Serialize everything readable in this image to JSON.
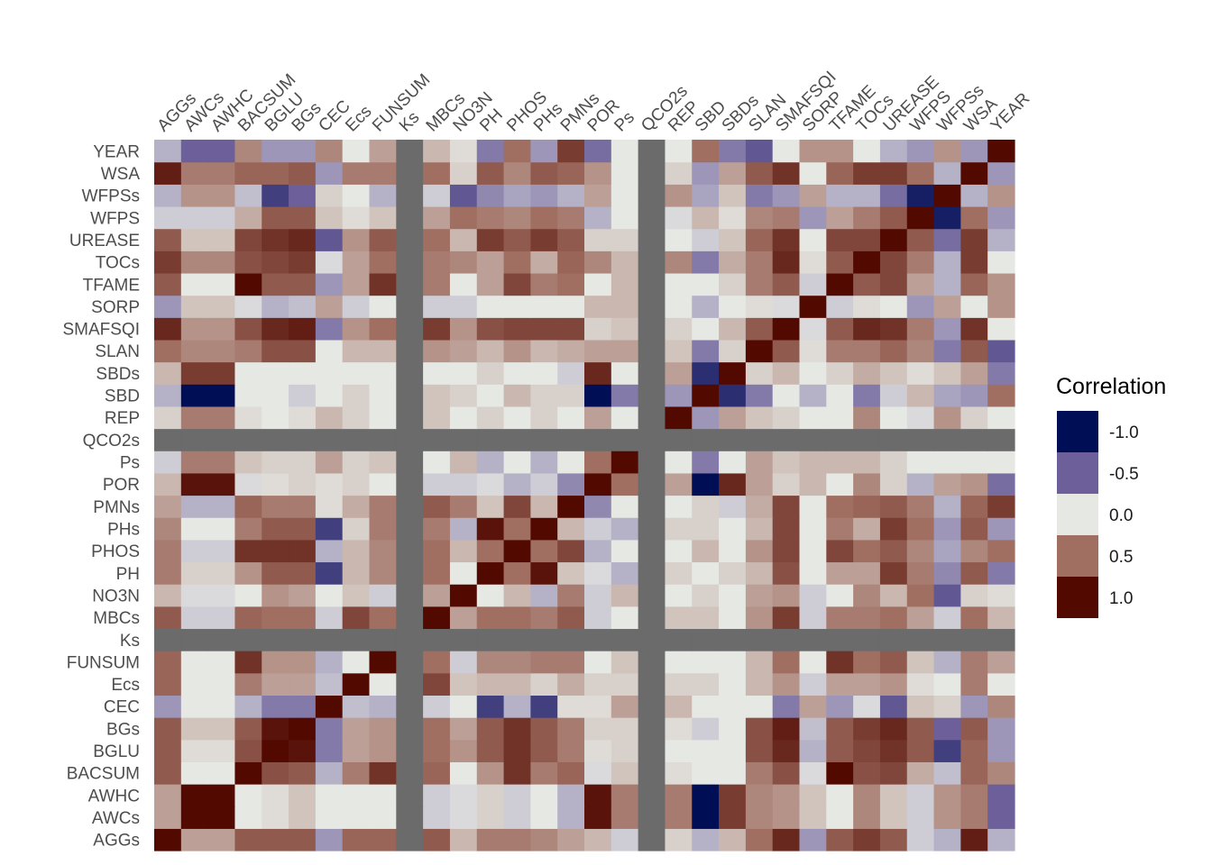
{
  "chart_data": {
    "type": "heatmap",
    "title": "",
    "xlabel": "",
    "ylabel": "",
    "variables": [
      "AGGs",
      "AWCs",
      "AWHC",
      "BACSUM",
      "BGLU",
      "BGs",
      "CEC",
      "Ecs",
      "FUNSUM",
      "Ks",
      "MBCs",
      "NO3N",
      "PH",
      "PHOS",
      "PHs",
      "PMNs",
      "POR",
      "Ps",
      "QCO2s",
      "REP",
      "SBD",
      "SBDs",
      "SLAN",
      "SMAFSQI",
      "SORP",
      "TFAME",
      "TOCs",
      "UREASE",
      "WFPS",
      "WFPSs",
      "WSA",
      "YEAR"
    ],
    "x_axis_position": "top",
    "y_order": "bottom-to-top",
    "missing_variables": [
      "Ks",
      "QCO2s"
    ],
    "missing_color": "#6b6b6b",
    "legend": {
      "title": "Correlation",
      "position": "right",
      "breaks": [
        -1.0,
        -0.5,
        0.0,
        0.5,
        1.0
      ],
      "labels": [
        "-1.0",
        "-0.5",
        "0.0",
        "0.5",
        "1.0"
      ],
      "colors": [
        "#000f55",
        "#6c5f9a",
        "#e6e8e4",
        "#a06f62",
        "#520900"
      ]
    },
    "color_range": [
      -1,
      1
    ],
    "values": [
      [
        1.0,
        0.3,
        0.3,
        0.6,
        0.6,
        0.6,
        -0.3,
        0.55,
        0.55,
        null,
        0.6,
        0.2,
        0.45,
        0.45,
        0.4,
        0.3,
        0.2,
        -0.1,
        null,
        0.1,
        -0.2,
        0.2,
        0.5,
        0.85,
        -0.3,
        0.6,
        0.75,
        0.6,
        -0.1,
        -0.2,
        0.9,
        -0.2
      ],
      [
        0.3,
        1.0,
        1.0,
        0.0,
        0.05,
        0.15,
        0.0,
        0.0,
        0.0,
        null,
        -0.1,
        -0.05,
        0.1,
        -0.1,
        0.0,
        -0.2,
        0.95,
        0.45,
        null,
        0.45,
        -1.0,
        0.75,
        0.4,
        0.35,
        0.15,
        0.0,
        0.4,
        0.15,
        -0.1,
        0.35,
        0.45,
        -0.5
      ],
      [
        0.3,
        1.0,
        1.0,
        0.0,
        0.05,
        0.15,
        0.0,
        0.0,
        0.0,
        null,
        -0.1,
        -0.05,
        0.1,
        -0.1,
        0.0,
        -0.2,
        0.95,
        0.45,
        null,
        0.45,
        -1.0,
        0.75,
        0.4,
        0.35,
        0.15,
        0.0,
        0.4,
        0.15,
        -0.1,
        0.35,
        0.45,
        -0.5
      ],
      [
        0.6,
        0.0,
        0.0,
        1.0,
        0.65,
        0.6,
        -0.2,
        0.45,
        0.8,
        null,
        0.55,
        0.0,
        0.35,
        0.8,
        0.45,
        0.55,
        -0.05,
        0.15,
        null,
        0.05,
        0.0,
        0.0,
        0.45,
        0.65,
        -0.05,
        1.0,
        0.65,
        0.7,
        0.25,
        -0.15,
        0.55,
        0.4
      ],
      [
        0.6,
        0.05,
        0.05,
        0.65,
        1.0,
        0.95,
        -0.4,
        0.3,
        0.35,
        null,
        0.5,
        0.35,
        0.6,
        0.8,
        0.6,
        0.45,
        0.05,
        0.1,
        null,
        0.0,
        0.0,
        0.0,
        0.65,
        0.85,
        -0.2,
        0.6,
        0.7,
        0.8,
        0.6,
        -0.7,
        0.55,
        -0.3
      ],
      [
        0.6,
        0.15,
        0.15,
        0.6,
        0.95,
        1.0,
        -0.4,
        0.3,
        0.35,
        null,
        0.5,
        0.3,
        0.6,
        0.8,
        0.6,
        0.45,
        0.1,
        0.1,
        null,
        0.05,
        -0.1,
        0.0,
        0.65,
        0.9,
        -0.15,
        0.6,
        0.75,
        0.85,
        0.6,
        -0.5,
        0.6,
        -0.3
      ],
      [
        -0.3,
        0.0,
        0.0,
        -0.2,
        -0.4,
        -0.4,
        1.0,
        -0.15,
        -0.2,
        null,
        -0.1,
        0.0,
        -0.7,
        -0.2,
        -0.7,
        0.05,
        0.05,
        0.3,
        null,
        0.2,
        0.0,
        0.0,
        0.0,
        -0.4,
        0.3,
        -0.3,
        -0.05,
        -0.55,
        0.15,
        0.1,
        -0.3,
        0.4
      ],
      [
        0.55,
        0.0,
        0.0,
        0.45,
        0.3,
        0.3,
        -0.15,
        1.0,
        0.0,
        null,
        0.7,
        0.15,
        0.2,
        0.2,
        0.1,
        0.25,
        0.1,
        0.1,
        null,
        0.1,
        0.1,
        0.0,
        0.2,
        0.35,
        -0.1,
        0.3,
        0.3,
        0.35,
        0.05,
        0.0,
        0.45,
        0.0
      ],
      [
        0.55,
        0.0,
        0.0,
        0.8,
        0.35,
        0.35,
        -0.2,
        0.0,
        1.0,
        null,
        0.5,
        -0.1,
        0.4,
        0.4,
        0.45,
        0.45,
        0.0,
        0.15,
        null,
        0.0,
        0.0,
        0.0,
        0.2,
        0.5,
        0.0,
        0.8,
        0.5,
        0.6,
        0.15,
        -0.2,
        0.45,
        0.3
      ],
      [
        null,
        null,
        null,
        null,
        null,
        null,
        null,
        null,
        null,
        null,
        null,
        null,
        null,
        null,
        null,
        null,
        null,
        null,
        null,
        null,
        null,
        null,
        null,
        null,
        null,
        null,
        null,
        null,
        null,
        null,
        null,
        null
      ],
      [
        0.6,
        -0.1,
        -0.1,
        0.55,
        0.5,
        0.5,
        -0.1,
        0.7,
        0.5,
        null,
        1.0,
        0.3,
        0.5,
        0.5,
        0.45,
        0.6,
        -0.1,
        0.0,
        null,
        0.15,
        0.15,
        0.0,
        0.35,
        0.75,
        -0.1,
        0.45,
        0.45,
        0.5,
        0.3,
        -0.1,
        0.5,
        0.2
      ],
      [
        0.2,
        -0.05,
        -0.05,
        0.0,
        0.35,
        0.3,
        0.0,
        0.15,
        -0.1,
        null,
        0.3,
        1.0,
        0.0,
        0.2,
        -0.2,
        0.45,
        -0.1,
        0.2,
        null,
        0.0,
        0.1,
        0.0,
        0.3,
        0.35,
        -0.1,
        0.0,
        0.4,
        0.2,
        0.5,
        -0.55,
        0.1,
        0.05
      ],
      [
        0.45,
        0.1,
        0.1,
        0.35,
        0.6,
        0.6,
        -0.7,
        0.2,
        0.4,
        null,
        0.5,
        0.0,
        1.0,
        0.5,
        0.95,
        0.15,
        -0.05,
        -0.2,
        null,
        0.1,
        0.0,
        0.1,
        0.2,
        0.65,
        0.0,
        0.3,
        0.3,
        0.75,
        0.45,
        -0.35,
        0.6,
        -0.4
      ],
      [
        0.45,
        -0.1,
        -0.1,
        0.8,
        0.8,
        0.8,
        -0.2,
        0.2,
        0.4,
        null,
        0.5,
        0.2,
        0.5,
        1.0,
        0.5,
        0.7,
        -0.2,
        0.0,
        null,
        0.0,
        0.2,
        0.0,
        0.35,
        0.7,
        0.0,
        0.7,
        0.5,
        0.6,
        0.4,
        -0.25,
        0.4,
        0.5
      ],
      [
        0.4,
        0.0,
        0.0,
        0.45,
        0.6,
        0.6,
        -0.7,
        0.1,
        0.45,
        null,
        0.45,
        -0.2,
        0.95,
        0.5,
        1.0,
        0.2,
        -0.1,
        -0.2,
        null,
        0.1,
        0.1,
        0.0,
        0.2,
        0.7,
        0.0,
        0.45,
        0.25,
        0.75,
        0.5,
        -0.3,
        0.6,
        -0.3
      ],
      [
        0.3,
        -0.2,
        -0.2,
        0.55,
        0.45,
        0.45,
        0.05,
        0.25,
        0.45,
        null,
        0.6,
        0.45,
        0.15,
        0.7,
        0.2,
        1.0,
        -0.35,
        0.0,
        null,
        0.0,
        0.1,
        -0.1,
        0.25,
        0.7,
        0.0,
        0.5,
        0.55,
        0.6,
        0.45,
        -0.2,
        0.55,
        0.75
      ],
      [
        0.2,
        0.95,
        0.95,
        -0.05,
        0.05,
        0.1,
        0.05,
        0.1,
        0.0,
        null,
        -0.1,
        -0.1,
        -0.05,
        -0.2,
        -0.1,
        -0.35,
        1.0,
        0.5,
        null,
        0.3,
        -1.0,
        0.85,
        0.3,
        0.1,
        0.2,
        0.0,
        0.4,
        0.1,
        -0.2,
        0.3,
        0.35,
        -0.45
      ],
      [
        -0.1,
        0.45,
        0.45,
        0.15,
        0.1,
        0.1,
        0.3,
        0.1,
        0.15,
        null,
        0.0,
        0.2,
        -0.2,
        0.0,
        -0.2,
        0.0,
        0.5,
        1.0,
        null,
        0.0,
        -0.4,
        0.0,
        0.3,
        0.15,
        0.2,
        0.2,
        0.2,
        0.1,
        0.0,
        0.0,
        0.0,
        0.0
      ],
      [
        null,
        null,
        null,
        null,
        null,
        null,
        null,
        null,
        null,
        null,
        null,
        null,
        null,
        null,
        null,
        null,
        null,
        null,
        null,
        null,
        null,
        null,
        null,
        null,
        null,
        null,
        null,
        null,
        null,
        null,
        null,
        null
      ],
      [
        0.1,
        0.45,
        0.45,
        0.05,
        0.0,
        0.05,
        0.2,
        0.1,
        0.0,
        null,
        0.15,
        0.0,
        0.1,
        0.0,
        0.1,
        0.0,
        0.3,
        0.0,
        null,
        1.0,
        -0.3,
        0.3,
        0.15,
        0.1,
        0.0,
        0.0,
        0.4,
        0.0,
        -0.05,
        0.35,
        0.1,
        0.0
      ],
      [
        -0.2,
        -1.0,
        -1.0,
        0.0,
        0.0,
        -0.1,
        0.0,
        0.1,
        0.0,
        null,
        0.15,
        0.1,
        0.0,
        0.2,
        0.1,
        0.1,
        -1.0,
        -0.4,
        null,
        -0.3,
        1.0,
        -0.8,
        -0.4,
        0.0,
        -0.2,
        0.0,
        -0.4,
        -0.1,
        0.2,
        -0.25,
        -0.3,
        0.5
      ],
      [
        0.2,
        0.75,
        0.75,
        0.0,
        0.0,
        0.0,
        0.0,
        0.0,
        0.0,
        null,
        0.0,
        0.0,
        0.1,
        0.0,
        0.0,
        -0.1,
        0.85,
        0.0,
        null,
        0.3,
        -0.8,
        1.0,
        0.1,
        0.2,
        0.0,
        0.1,
        0.25,
        0.15,
        0.05,
        0.15,
        0.3,
        -0.4
      ],
      [
        0.5,
        0.4,
        0.4,
        0.45,
        0.65,
        0.65,
        0.0,
        0.2,
        0.2,
        null,
        0.35,
        0.3,
        0.2,
        0.35,
        0.2,
        0.25,
        0.3,
        0.3,
        null,
        0.15,
        -0.4,
        0.1,
        1.0,
        0.6,
        0.05,
        0.45,
        0.45,
        0.55,
        0.4,
        -0.4,
        0.6,
        -0.55
      ],
      [
        0.85,
        0.35,
        0.35,
        0.65,
        0.85,
        0.9,
        -0.4,
        0.35,
        0.5,
        null,
        0.75,
        0.35,
        0.65,
        0.7,
        0.7,
        0.7,
        0.1,
        0.15,
        null,
        0.1,
        0.0,
        0.2,
        0.6,
        1.0,
        -0.05,
        0.6,
        0.85,
        0.8,
        0.45,
        -0.3,
        0.8,
        0.0
      ],
      [
        -0.3,
        0.15,
        0.15,
        -0.05,
        -0.2,
        -0.15,
        0.3,
        -0.1,
        0.0,
        null,
        -0.1,
        -0.1,
        0.0,
        0.0,
        0.0,
        0.0,
        0.2,
        0.2,
        null,
        0.0,
        -0.2,
        0.0,
        0.05,
        -0.05,
        1.0,
        -0.1,
        0.05,
        0.0,
        -0.3,
        0.3,
        0.0,
        0.35
      ],
      [
        0.6,
        0.0,
        0.0,
        1.0,
        0.6,
        0.6,
        -0.3,
        0.3,
        0.8,
        null,
        0.45,
        0.0,
        0.3,
        0.7,
        0.45,
        0.5,
        0.0,
        0.2,
        null,
        0.0,
        0.0,
        0.1,
        0.45,
        0.6,
        -0.1,
        1.0,
        0.6,
        0.7,
        0.3,
        -0.2,
        0.55,
        0.35
      ],
      [
        0.75,
        0.4,
        0.4,
        0.65,
        0.7,
        0.75,
        -0.05,
        0.3,
        0.5,
        null,
        0.45,
        0.4,
        0.3,
        0.5,
        0.25,
        0.55,
        0.4,
        0.2,
        null,
        0.4,
        -0.4,
        0.25,
        0.45,
        0.85,
        0.05,
        0.6,
        1.0,
        0.7,
        0.45,
        -0.2,
        0.75,
        0.0
      ],
      [
        0.6,
        0.15,
        0.15,
        0.7,
        0.8,
        0.85,
        -0.55,
        0.35,
        0.6,
        null,
        0.5,
        0.2,
        0.75,
        0.6,
        0.75,
        0.6,
        0.1,
        0.1,
        null,
        0.0,
        -0.1,
        0.15,
        0.55,
        0.8,
        0.0,
        0.7,
        0.7,
        1.0,
        0.6,
        -0.45,
        0.75,
        -0.2
      ],
      [
        -0.1,
        -0.1,
        -0.1,
        0.25,
        0.6,
        0.6,
        0.15,
        0.05,
        0.15,
        null,
        0.3,
        0.5,
        0.45,
        0.4,
        0.5,
        0.45,
        -0.2,
        0.0,
        null,
        -0.05,
        0.2,
        0.05,
        0.4,
        0.45,
        -0.3,
        0.3,
        0.45,
        0.6,
        1.0,
        -0.9,
        0.5,
        -0.3
      ],
      [
        -0.2,
        0.35,
        0.35,
        -0.15,
        -0.7,
        -0.5,
        0.1,
        0.0,
        -0.2,
        null,
        -0.1,
        -0.55,
        -0.35,
        -0.25,
        -0.3,
        -0.2,
        0.3,
        0.0,
        null,
        0.35,
        -0.25,
        0.15,
        -0.4,
        -0.3,
        0.3,
        -0.2,
        -0.2,
        -0.45,
        -0.9,
        1.0,
        -0.2,
        0.35
      ],
      [
        0.9,
        0.45,
        0.45,
        0.55,
        0.55,
        0.6,
        -0.3,
        0.45,
        0.45,
        null,
        0.5,
        0.1,
        0.6,
        0.4,
        0.6,
        0.55,
        0.35,
        0.0,
        null,
        0.1,
        -0.3,
        0.3,
        0.6,
        0.8,
        0.0,
        0.55,
        0.75,
        0.75,
        0.5,
        -0.2,
        1.0,
        -0.3
      ],
      [
        -0.2,
        -0.5,
        -0.5,
        0.4,
        -0.3,
        -0.3,
        0.4,
        0.0,
        0.3,
        null,
        0.2,
        0.05,
        -0.4,
        0.5,
        -0.3,
        0.75,
        -0.45,
        0.0,
        null,
        0.0,
        0.5,
        -0.4,
        -0.55,
        0.0,
        0.35,
        0.35,
        0.0,
        -0.2,
        -0.3,
        0.35,
        -0.3,
        1.0
      ]
    ]
  }
}
